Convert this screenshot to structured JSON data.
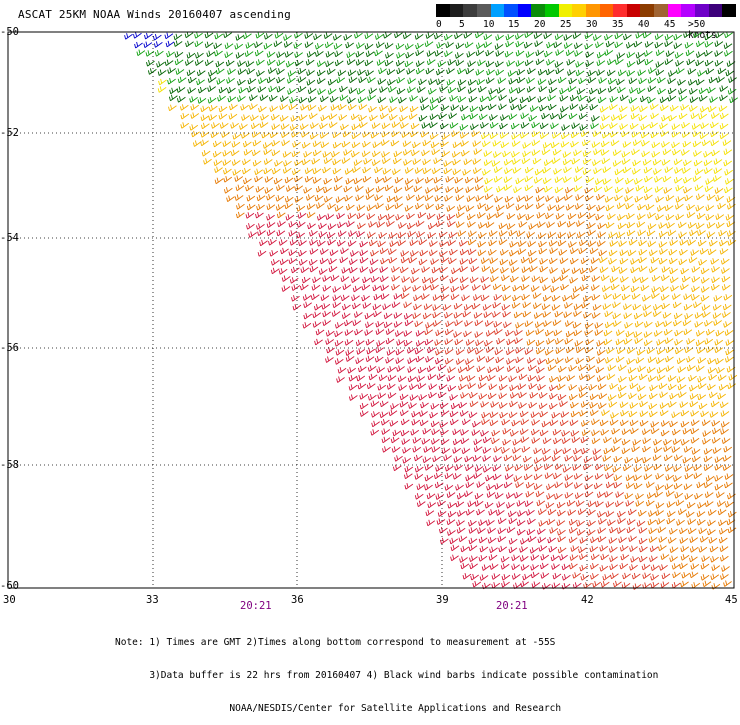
{
  "header": {
    "title": "ASCAT 25KM NOAA Winds 20160407 ascending"
  },
  "legend": {
    "colors": [
      "#000000",
      "#1e1e1e",
      "#3c3c3c",
      "#5a5a5a",
      "#00a0ff",
      "#0050ff",
      "#0000ff",
      "#0a8c0a",
      "#00c800",
      "#f0f000",
      "#ffd000",
      "#ff9600",
      "#ff6400",
      "#ff2d2d",
      "#c80000",
      "#8c3c00",
      "#a06432",
      "#ff00ff",
      "#b400ff",
      "#6e00c8",
      "#3c007a",
      "#000000"
    ],
    "labels": [
      "0",
      "5",
      "10",
      "15",
      "20",
      "25",
      "30",
      "35",
      "40",
      "45",
      ">50 knots"
    ]
  },
  "axes": {
    "lat_labels": [
      "-50",
      "-52",
      "-54",
      "-56",
      "-58",
      "-60"
    ],
    "lon_labels": [
      "30",
      "33",
      "36",
      "39",
      "42",
      "45"
    ],
    "time_labels": [
      "20:21",
      "20:21"
    ]
  },
  "notes": {
    "line1": "Note: 1) Times are GMT 2)Times along bottom correspond to measurement at -55S",
    "line2": "      3)Data buffer is 22 hrs from 20160407 4) Black wind barbs indicate possible contamination",
    "line3": "                    NOAA/NESDIS/Center for Satellite Applications and Research"
  },
  "map_colors": {
    "blue": "#0000cc",
    "dark_green": "#006400",
    "green": "#10a010",
    "yellow": "#f5e100",
    "light_orange": "#f5b400",
    "orange": "#e67800",
    "red_orange": "#dc3c28",
    "red": "#d2143c"
  }
}
